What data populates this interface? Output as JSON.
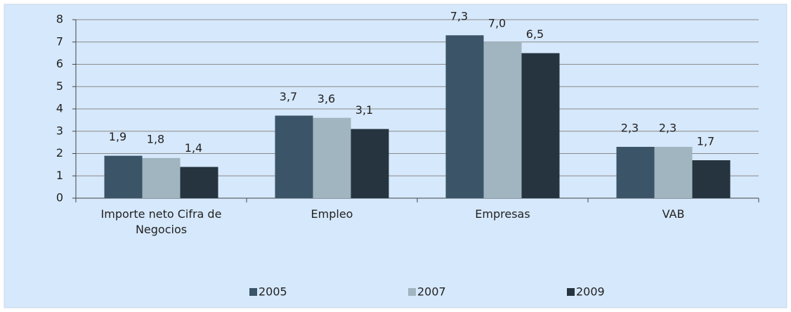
{
  "chart_data": {
    "type": "bar",
    "categories": [
      "Importe neto Cifra de Negocios",
      "Empleo",
      "Empresas",
      "VAB"
    ],
    "series": [
      {
        "name": "2005",
        "color": "#3b5468",
        "values": [
          1.9,
          3.7,
          7.3,
          2.3
        ],
        "value_labels": [
          "1,9",
          "3,7",
          "7,3",
          "2,3"
        ]
      },
      {
        "name": "2007",
        "color": "#a0b5bf",
        "values": [
          1.8,
          3.6,
          7.0,
          2.3
        ],
        "value_labels": [
          "1,8",
          "3,6",
          "7,0",
          "2,3"
        ]
      },
      {
        "name": "2009",
        "color": "#26343f",
        "values": [
          1.4,
          3.1,
          6.5,
          1.7
        ],
        "value_labels": [
          "1,4",
          "3,1",
          "6,5",
          "1,7"
        ]
      }
    ],
    "ylim": [
      0,
      8
    ],
    "yticks": [
      0,
      1,
      2,
      3,
      4,
      5,
      6,
      7,
      8
    ],
    "grid": true,
    "legend": "bottom"
  }
}
